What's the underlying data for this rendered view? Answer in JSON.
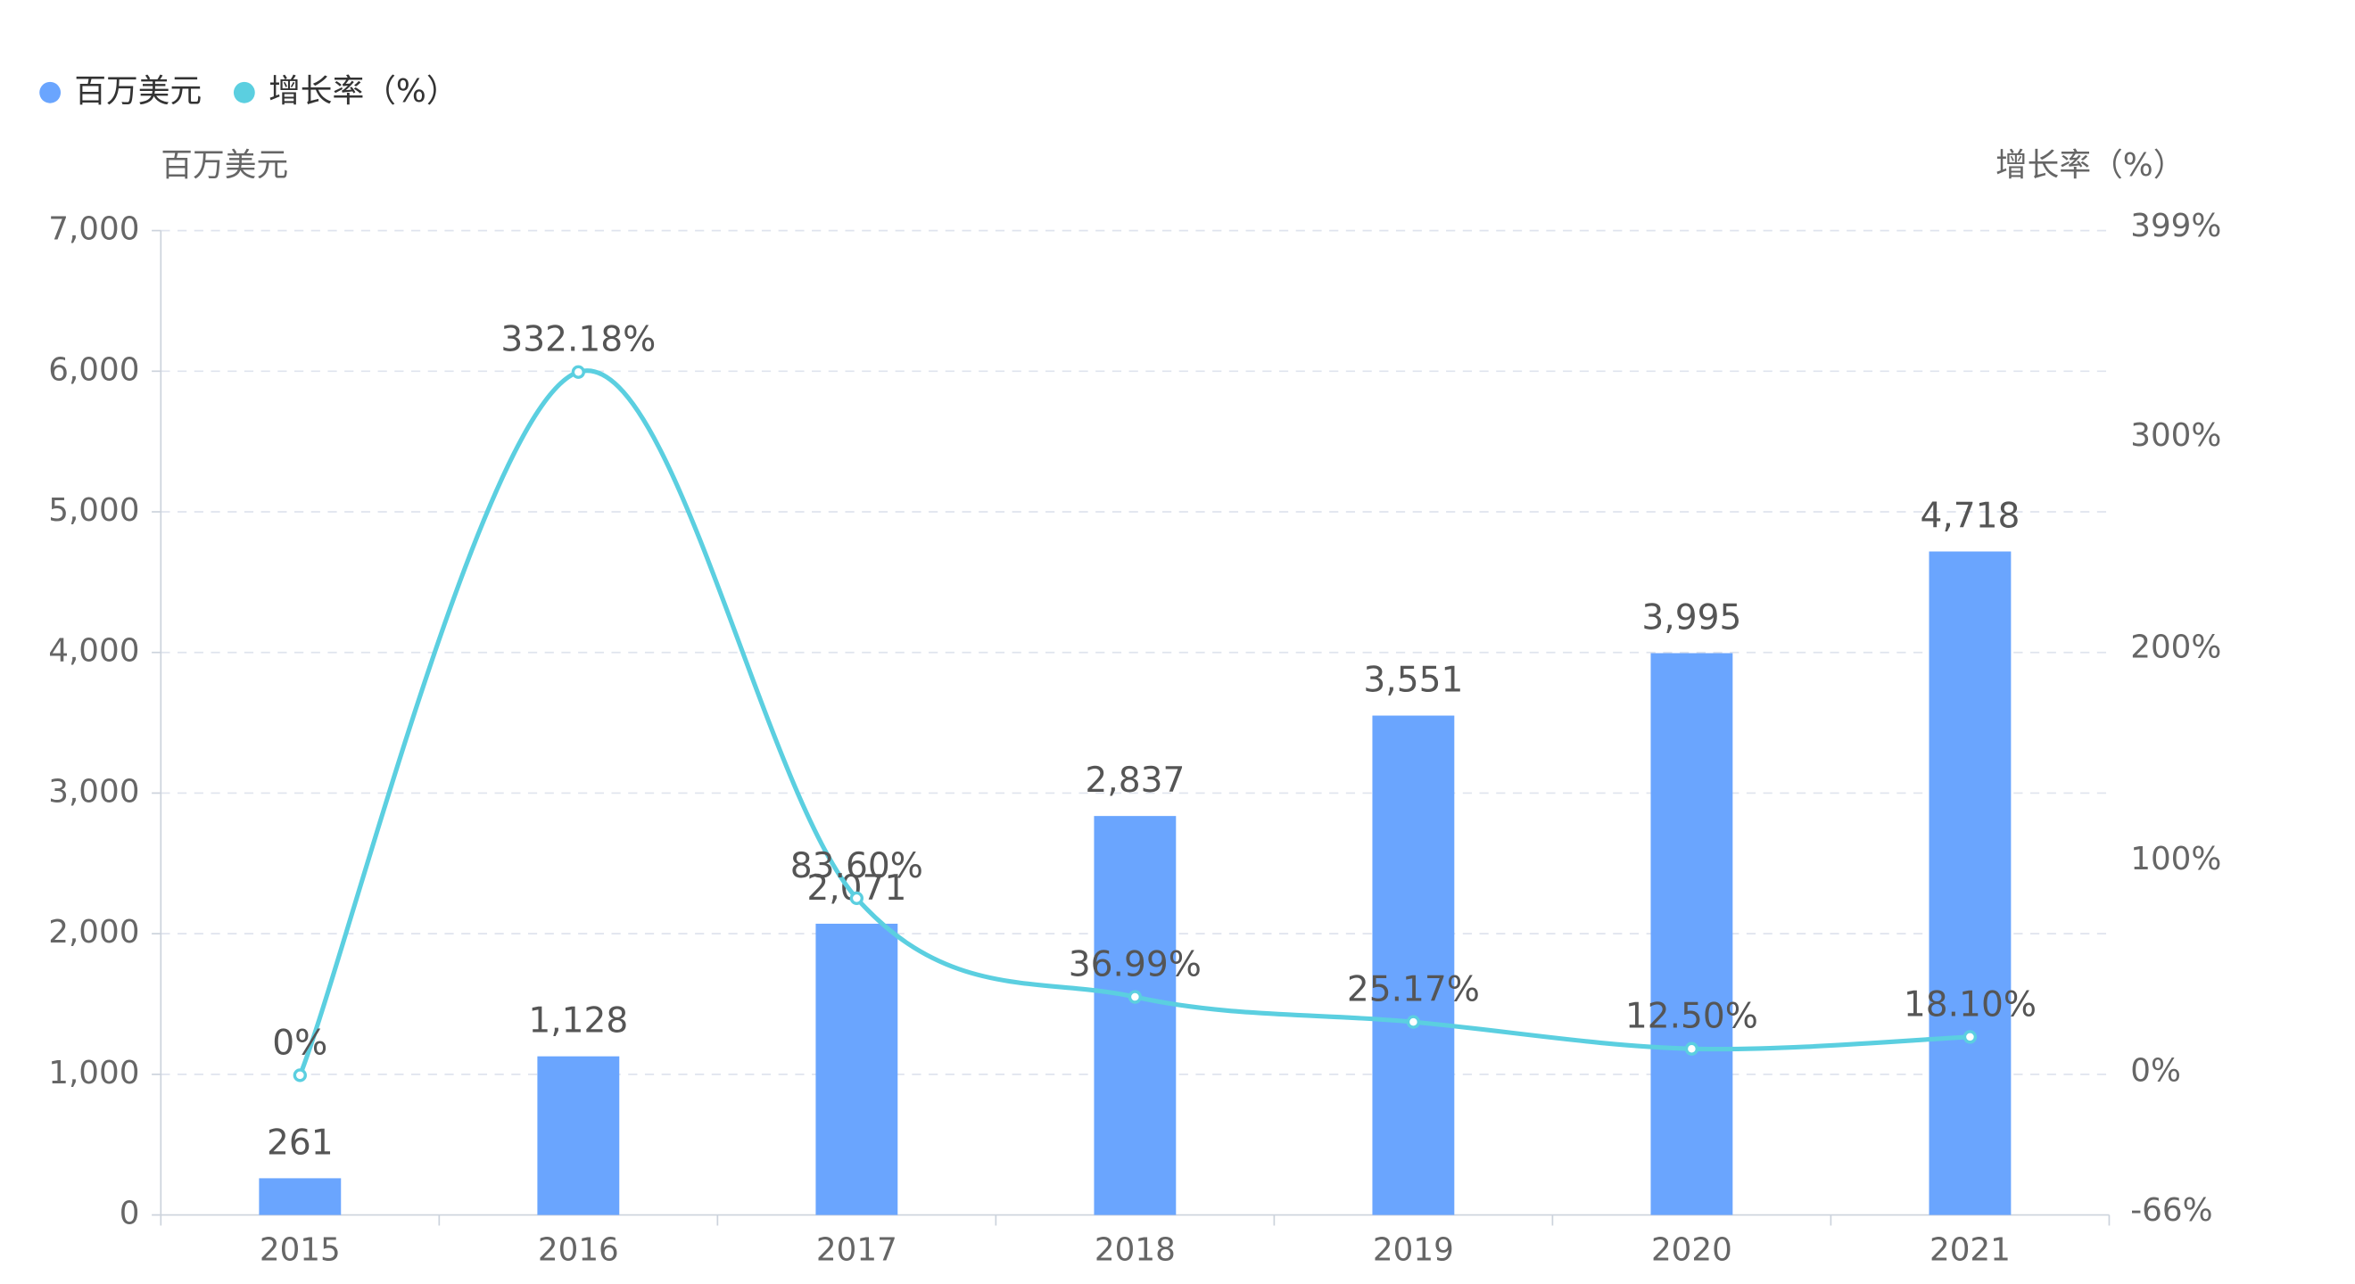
{
  "chart_data": {
    "type": "bar-line",
    "y_label": "百万美元",
    "y2_label": "增长率（%）",
    "categories": [
      "2015",
      "2016",
      "2017",
      "2018",
      "2019",
      "2020",
      "2021"
    ],
    "series": [
      {
        "name": "百万美元",
        "type": "bar",
        "color": "#6aa5fe",
        "values": [
          261,
          1128,
          2071,
          2837,
          3551,
          3995,
          4718
        ],
        "value_labels": [
          "261",
          "1,128",
          "2,071",
          "2,837",
          "3,551",
          "3,995",
          "4,718"
        ]
      },
      {
        "name": "增长率（%）",
        "type": "line",
        "axis": "y2",
        "color": "#5bcfe0",
        "smooth": true,
        "values": [
          0,
          332.18,
          83.6,
          36.99,
          25.17,
          12.5,
          18.1
        ],
        "value_labels": [
          "0%",
          "332.18%",
          "83.60%",
          "36.99%",
          "25.17%",
          "12.50%",
          "18.10%"
        ]
      }
    ],
    "ylim": [
      0,
      7000
    ],
    "yticks": [
      0,
      {
        "value": 1000,
        "label": "1,000"
      },
      {
        "value": 2000,
        "label": "2,000"
      },
      {
        "value": 3000,
        "label": "3,000"
      },
      {
        "value": 4000,
        "label": "4,000"
      },
      {
        "value": 5000,
        "label": "5,000"
      },
      {
        "value": 6000,
        "label": "6,000"
      },
      {
        "value": 7000,
        "label": "7,000"
      }
    ],
    "y2lim": [
      -66,
      399
    ],
    "y2ticks": [
      {
        "value": -66,
        "label": "-66%"
      },
      {
        "value": 0,
        "label": "0%"
      },
      {
        "value": 100,
        "label": "100%"
      },
      {
        "value": 200,
        "label": "200%"
      },
      {
        "value": 300,
        "label": "300%"
      },
      {
        "value": 399,
        "label": "399%"
      }
    ],
    "grid": true,
    "legend": "top-left"
  }
}
